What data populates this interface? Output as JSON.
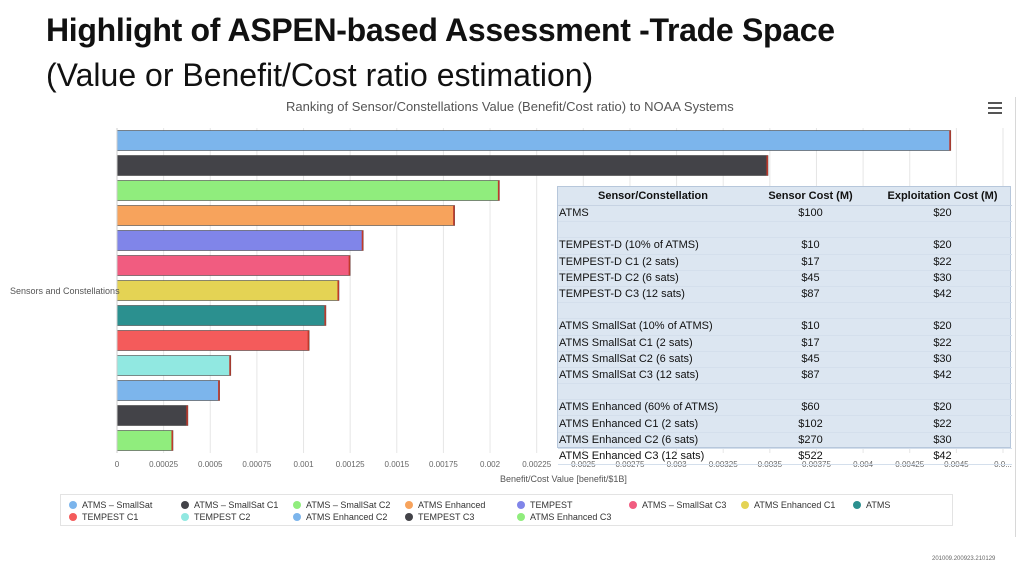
{
  "slide": {
    "title": "Highlight of ASPEN-based Assessment -Trade Space",
    "subtitle": "(Value or Benefit/Cost ratio estimation)",
    "footnote": "201009.200923.210129"
  },
  "menu_icon": "hamburger-menu-icon",
  "chart_data": {
    "type": "bar",
    "orientation": "horizontal",
    "title": "Ranking of Sensor/Constellations Value (Benefit/Cost ratio) to NOAA Systems",
    "xlabel": "Benefit/Cost Value [benefit/$1B]",
    "ylabel": "Sensors and Constellations",
    "xlim": [
      0,
      0.00475
    ],
    "x_ticks": [
      "0",
      "0.00025",
      "0.0005",
      "0.00075",
      "0.001",
      "0.00125",
      "0.0015",
      "0.00175",
      "0.002",
      "0.00225",
      "0.0025",
      "0.00275",
      "0.003",
      "0.00325",
      "0.0035",
      "0.00375",
      "0.004",
      "0.00425",
      "0.0045",
      "0.0..."
    ],
    "grid": true,
    "series": [
      {
        "name": "ATMS Enhanced C2",
        "value": 0.00447,
        "color": "#7cb5ec"
      },
      {
        "name": "TEMPEST C3",
        "value": 0.00349,
        "color": "#434348"
      },
      {
        "name": "ATMS – SmallSat C2",
        "value": 0.00205,
        "color": "#90ed7d"
      },
      {
        "name": "ATMS Enhanced",
        "value": 0.00181,
        "color": "#f7a35c"
      },
      {
        "name": "TEMPEST",
        "value": 0.00132,
        "color": "#8085e9"
      },
      {
        "name": "ATMS – SmallSat C3",
        "value": 0.00125,
        "color": "#f15c80"
      },
      {
        "name": "ATMS Enhanced C1",
        "value": 0.00119,
        "color": "#e4d354"
      },
      {
        "name": "ATMS",
        "value": 0.00112,
        "color": "#2b908f"
      },
      {
        "name": "TEMPEST C1",
        "value": 0.00103,
        "color": "#f45b5b"
      },
      {
        "name": "TEMPEST C2",
        "value": 0.00061,
        "color": "#91e8e1"
      },
      {
        "name": "ATMS – SmallSat",
        "value": 0.00055,
        "color": "#7cb5ec"
      },
      {
        "name": "ATMS – SmallSat C1",
        "value": 0.00038,
        "color": "#434348"
      },
      {
        "name": "ATMS Enhanced C3",
        "value": 0.0003,
        "color": "#90ed7d"
      }
    ],
    "legend": [
      {
        "label": "ATMS – SmallSat",
        "color": "#7cb5ec"
      },
      {
        "label": "ATMS – SmallSat C1",
        "color": "#434348"
      },
      {
        "label": "ATMS – SmallSat C2",
        "color": "#90ed7d"
      },
      {
        "label": "ATMS Enhanced",
        "color": "#f7a35c"
      },
      {
        "label": "TEMPEST",
        "color": "#8085e9"
      },
      {
        "label": "ATMS – SmallSat C3",
        "color": "#f15c80"
      },
      {
        "label": "ATMS Enhanced C1",
        "color": "#e4d354"
      },
      {
        "label": "ATMS",
        "color": "#2b908f"
      },
      {
        "label": "TEMPEST C1",
        "color": "#f45b5b"
      },
      {
        "label": "TEMPEST C2",
        "color": "#91e8e1"
      },
      {
        "label": "ATMS Enhanced C2",
        "color": "#7cb5ec"
      },
      {
        "label": "TEMPEST C3",
        "color": "#434348"
      },
      {
        "label": "ATMS Enhanced C3",
        "color": "#90ed7d"
      }
    ]
  },
  "cost_table": {
    "headers": [
      "Sensor/Constellation",
      "Sensor Cost (M)",
      "Exploitation Cost (M)"
    ],
    "rows": [
      [
        "ATMS",
        "$100",
        "$20"
      ],
      [
        "",
        "",
        ""
      ],
      [
        "TEMPEST-D (10% of ATMS)",
        "$10",
        "$20"
      ],
      [
        "TEMPEST-D C1 (2 sats)",
        "$17",
        "$22"
      ],
      [
        "TEMPEST-D C2 (6 sats)",
        "$45",
        "$30"
      ],
      [
        "TEMPEST-D C3 (12 sats)",
        "$87",
        "$42"
      ],
      [
        "",
        "",
        ""
      ],
      [
        "ATMS SmallSat (10% of ATMS)",
        "$10",
        "$20"
      ],
      [
        "ATMS SmallSat C1 (2 sats)",
        "$17",
        "$22"
      ],
      [
        "ATMS SmallSat C2 (6 sats)",
        "$45",
        "$30"
      ],
      [
        "ATMS SmallSat C3 (12 sats)",
        "$87",
        "$42"
      ],
      [
        "",
        "",
        ""
      ],
      [
        "ATMS Enhanced (60% of ATMS)",
        "$60",
        "$20"
      ],
      [
        "ATMS Enhanced C1 (2 sats)",
        "$102",
        "$22"
      ],
      [
        "ATMS Enhanced C2 (6 sats)",
        "$270",
        "$30"
      ],
      [
        "ATMS Enhanced C3 (12 sats)",
        "$522",
        "$42"
      ]
    ]
  }
}
